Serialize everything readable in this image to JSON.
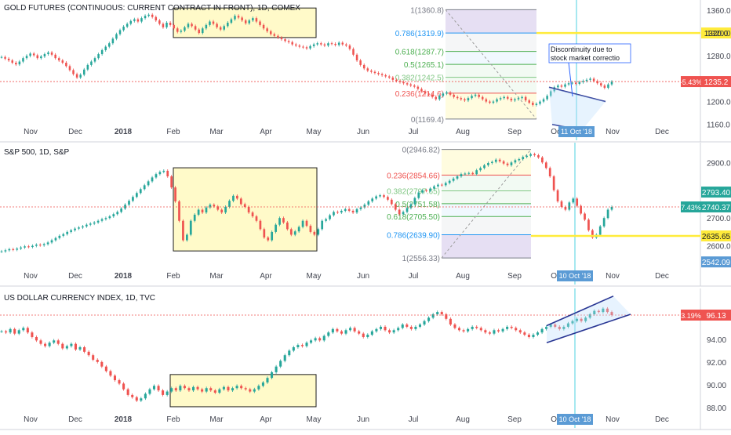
{
  "chart_data": [
    {
      "type": "line",
      "title": "GOLD FUTURES (CONTINUOUS: CURRENT CONTRACT IN FRONT), 1D, COMEX",
      "ylim": [
        1150,
        1375
      ],
      "y_ticks": [
        "1360.0",
        "1320.0",
        "1280.0",
        "1240.0",
        "1200.0",
        "1160.0"
      ],
      "y_tick_values": [
        1360,
        1320,
        1280,
        1240,
        1200,
        1160
      ],
      "x_ticks": [
        "Nov",
        "Dec",
        "2018",
        "Feb",
        "Mar",
        "Apr",
        "May",
        "Jun",
        "Jul",
        "Aug",
        "Sep",
        "Oct",
        "Nov",
        "Dec"
      ],
      "series": [
        {
          "values": [
            1278,
            1275,
            1272,
            1268,
            1265,
            1270,
            1276,
            1280,
            1284,
            1281,
            1276,
            1279,
            1283,
            1286,
            1282,
            1276,
            1272,
            1268,
            1262,
            1255,
            1248,
            1242,
            1247,
            1256,
            1264,
            1270,
            1276,
            1283,
            1290,
            1296,
            1302,
            1310,
            1318,
            1325,
            1331,
            1336,
            1341,
            1344,
            1340,
            1346,
            1350,
            1352,
            1348,
            1342,
            1336,
            1330,
            1338,
            1334,
            1328,
            1322,
            1324,
            1330,
            1336,
            1332,
            1326,
            1320,
            1328,
            1334,
            1340,
            1336,
            1330,
            1326,
            1332,
            1338,
            1344,
            1350,
            1347,
            1342,
            1337,
            1342,
            1346,
            1340,
            1334,
            1328,
            1323,
            1318,
            1315,
            1312,
            1309,
            1306,
            1304,
            1300,
            1298,
            1296,
            1295,
            1293,
            1297,
            1300,
            1302,
            1300,
            1298,
            1302,
            1301,
            1299,
            1303,
            1300,
            1298,
            1292,
            1282,
            1272,
            1264,
            1258,
            1254,
            1252,
            1250,
            1248,
            1246,
            1244,
            1242,
            1238,
            1236,
            1234,
            1232,
            1230,
            1228,
            1226,
            1222,
            1218,
            1214,
            1212,
            1208,
            1204,
            1210,
            1214,
            1216,
            1212,
            1208,
            1206,
            1204,
            1202,
            1206,
            1210,
            1212,
            1208,
            1204,
            1200,
            1198,
            1200,
            1204,
            1206,
            1208,
            1205,
            1202,
            1204,
            1206,
            1208,
            1202,
            1198,
            1194,
            1196,
            1200,
            1204,
            1210,
            1218,
            1225,
            1228,
            1226,
            1230,
            1232,
            1233,
            1231,
            1234,
            1236,
            1238,
            1240,
            1236,
            1232,
            1228,
            1224,
            1230,
            1235
          ]
        }
      ],
      "last_change": "-5.43%",
      "last_price": "1235.2",
      "target_label": "1320.0",
      "fib_levels": [
        {
          "label": "1(1360.8)",
          "value": 1360.8,
          "color": "#787b86"
        },
        {
          "label": "0.786(1319.9)",
          "value": 1319.9,
          "color": "#2196f3"
        },
        {
          "label": "0.618(1287.7)",
          "value": 1287.7,
          "color": "#4caf50"
        },
        {
          "label": "0.5(1265.1)",
          "value": 1265.1,
          "color": "#4caf50"
        },
        {
          "label": "0.382(1242.5)",
          "value": 1242.5,
          "color": "#81c784"
        },
        {
          "label": "0.236(1214.6)",
          "value": 1214.6,
          "color": "#ef5350"
        },
        {
          "label": "0(1169.4)",
          "value": 1169.4,
          "color": "#787b86"
        }
      ],
      "annotation": "Discontinuity due to stock market correctio",
      "date_marker": "11 Oct '18"
    },
    {
      "type": "line",
      "title": "S&P 500, 1D, S&P",
      "ylim": [
        2520,
        2960
      ],
      "y_ticks": [
        "2900.0",
        "2800.0",
        "2700.0",
        "2600.0"
      ],
      "y_tick_values": [
        2900,
        2800,
        2700,
        2600
      ],
      "x_ticks": [
        "Nov",
        "Dec",
        "2018",
        "Feb",
        "Mar",
        "Apr",
        "May",
        "Jun",
        "Jul",
        "Aug",
        "Sep",
        "Oct",
        "Nov",
        "Dec"
      ],
      "series": [
        {
          "values": [
            2580,
            2584,
            2588,
            2586,
            2590,
            2594,
            2598,
            2596,
            2600,
            2604,
            2602,
            2606,
            2612,
            2620,
            2628,
            2636,
            2642,
            2650,
            2656,
            2662,
            2666,
            2670,
            2676,
            2680,
            2684,
            2690,
            2696,
            2700,
            2706,
            2714,
            2722,
            2734,
            2748,
            2762,
            2776,
            2790,
            2804,
            2818,
            2832,
            2846,
            2858,
            2866,
            2870,
            2850,
            2810,
            2760,
            2690,
            2620,
            2640,
            2690,
            2712,
            2730,
            2720,
            2738,
            2748,
            2742,
            2730,
            2720,
            2740,
            2762,
            2780,
            2770,
            2750,
            2740,
            2720,
            2706,
            2690,
            2660,
            2630,
            2620,
            2650,
            2676,
            2700,
            2684,
            2660,
            2640,
            2652,
            2668,
            2690,
            2672,
            2650,
            2640,
            2660,
            2690,
            2696,
            2710,
            2722,
            2720,
            2726,
            2732,
            2726,
            2720,
            2732,
            2738,
            2748,
            2760,
            2770,
            2778,
            2782,
            2776,
            2766,
            2750,
            2730,
            2714,
            2722,
            2736,
            2750,
            2772,
            2792,
            2800,
            2798,
            2806,
            2814,
            2820,
            2818,
            2826,
            2834,
            2842,
            2850,
            2858,
            2860,
            2862,
            2858,
            2872,
            2880,
            2890,
            2898,
            2902,
            2910,
            2904,
            2896,
            2890,
            2900,
            2908,
            2912,
            2920,
            2924,
            2930,
            2926,
            2918,
            2900,
            2880,
            2850,
            2800,
            2760,
            2740,
            2730,
            2756,
            2770,
            2744,
            2716,
            2694,
            2656,
            2630,
            2640,
            2670,
            2700,
            2730,
            2740
          ]
        }
      ],
      "last_change": "7.43%",
      "last_price": "2740.37",
      "prev_high_label": "2793.40",
      "target_label": "2635.65",
      "low_label": "2542.09",
      "fib_levels": [
        {
          "label": "0(2946.82)",
          "value": 2946.82,
          "color": "#787b86"
        },
        {
          "label": "0.236(2854.66)",
          "value": 2854.66,
          "color": "#ef5350"
        },
        {
          "label": "0.382(2797.65)",
          "value": 2797.65,
          "color": "#81c784"
        },
        {
          "label": "0.5(2751.58)",
          "value": 2751.58,
          "color": "#4caf50"
        },
        {
          "label": "0.618(2705.50)",
          "value": 2705.5,
          "color": "#4caf50"
        },
        {
          "label": "0.786(2639.90)",
          "value": 2639.9,
          "color": "#2196f3"
        },
        {
          "label": "1(2556.33)",
          "value": 2556.33,
          "color": "#787b86"
        }
      ],
      "date_marker": "10 Oct '18"
    },
    {
      "type": "line",
      "title": "US DOLLAR CURRENCY INDEX, 1D, TVC",
      "ylim": [
        87.3,
        98.2
      ],
      "y_ticks": [
        "94.00",
        "92.00",
        "90.00",
        "88.00"
      ],
      "y_tick_values": [
        94,
        92,
        90,
        88
      ],
      "x_ticks": [
        "Nov",
        "Dec",
        "2018",
        "Feb",
        "Mar",
        "Apr",
        "May",
        "Jun",
        "Jul",
        "Aug",
        "Sep",
        "Oct",
        "Nov",
        "Dec"
      ],
      "series": [
        {
          "values": [
            94.7,
            94.6,
            94.9,
            94.5,
            94.8,
            95.0,
            94.6,
            94.2,
            93.9,
            93.6,
            93.4,
            93.7,
            93.9,
            93.6,
            93.2,
            93.4,
            93.6,
            93.1,
            93.3,
            92.9,
            92.6,
            92.2,
            92.0,
            91.6,
            91.2,
            90.8,
            90.4,
            90.1,
            89.6,
            89.1,
            88.9,
            88.6,
            88.8,
            89.2,
            89.6,
            89.9,
            89.5,
            89.1,
            89.4,
            89.7,
            89.5,
            89.9,
            89.7,
            89.5,
            89.8,
            89.6,
            89.4,
            89.7,
            89.5,
            89.3,
            89.6,
            89.8,
            89.5,
            89.7,
            89.9,
            89.7,
            89.6,
            89.4,
            89.6,
            89.9,
            90.2,
            90.6,
            91.1,
            91.6,
            92.1,
            92.6,
            93.0,
            93.3,
            93.5,
            93.4,
            93.7,
            93.9,
            94.1,
            93.9,
            94.3,
            94.6,
            94.9,
            94.7,
            94.5,
            94.8,
            95.0,
            94.7,
            94.5,
            94.2,
            94.4,
            94.7,
            94.9,
            95.1,
            94.8,
            94.6,
            94.8,
            95.0,
            95.3,
            95.1,
            94.9,
            95.1,
            95.3,
            95.6,
            95.9,
            96.2,
            96.4,
            96.2,
            95.8,
            95.3,
            95.0,
            94.8,
            94.7,
            94.9,
            95.1,
            95.0,
            94.8,
            94.6,
            94.5,
            94.8,
            94.7,
            94.9,
            95.1,
            95.0,
            94.8,
            94.6,
            94.4,
            94.2,
            94.4,
            94.6,
            94.9,
            95.1,
            95.3,
            95.1,
            94.9,
            95.1,
            95.4,
            95.6,
            95.8,
            95.6,
            95.9,
            96.2,
            96.5,
            96.4,
            96.7,
            96.4,
            96.13
          ]
        }
      ],
      "last_change": "3.19%",
      "last_price": "96.13",
      "date_marker": "10 Oct '18"
    }
  ]
}
